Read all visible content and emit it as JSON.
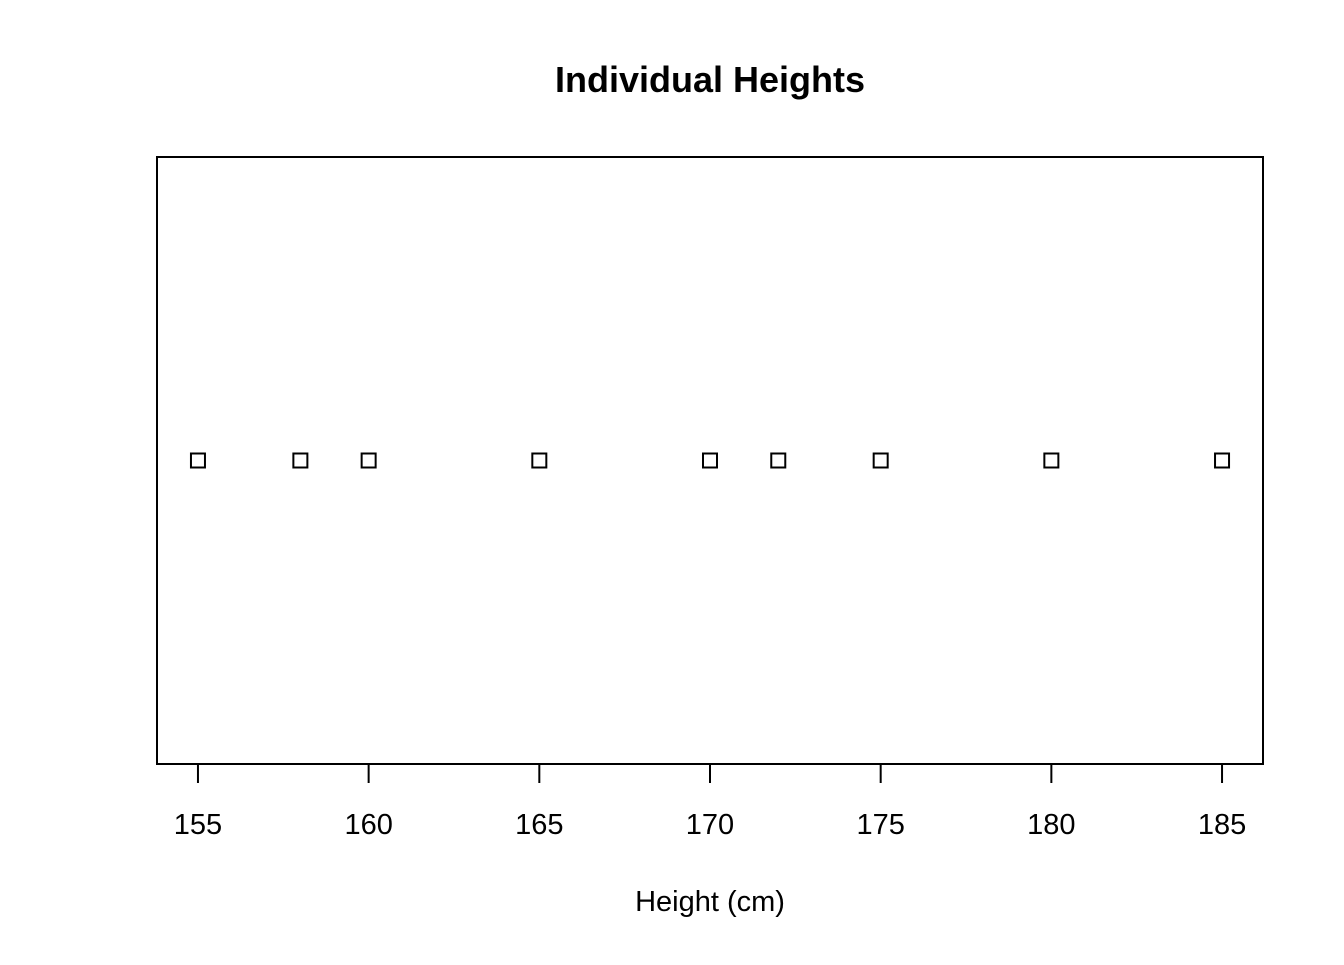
{
  "chart_data": {
    "type": "scatter",
    "title": "Individual Heights",
    "xlabel": "Height (cm)",
    "ylabel": "",
    "x": [
      155,
      158,
      160,
      165,
      170,
      172,
      175,
      180,
      185
    ],
    "y": [
      1,
      1,
      1,
      1,
      1,
      1,
      1,
      1,
      1
    ],
    "xlim": [
      153.8,
      186.2
    ],
    "ylim": [
      0.6,
      1.4
    ],
    "x_ticks": [
      155,
      160,
      165,
      170,
      175,
      180,
      185
    ],
    "x_tick_labels": [
      "155",
      "160",
      "165",
      "170",
      "175",
      "180",
      "185"
    ],
    "marker": "open-square",
    "marker_color": "#000000",
    "grid": false,
    "legend": "none",
    "y_axis_visible": false
  }
}
